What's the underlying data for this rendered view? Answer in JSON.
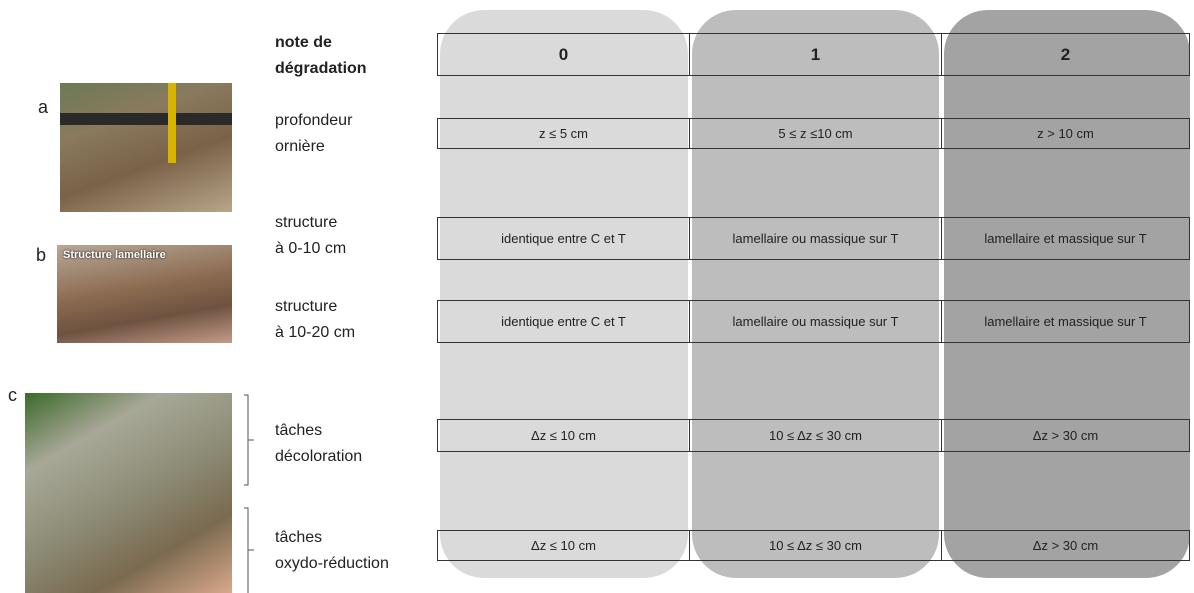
{
  "photos": [
    {
      "label": "a"
    },
    {
      "label": "b",
      "caption": "Structure lamellaire"
    },
    {
      "label": "c"
    }
  ],
  "table": {
    "header_label": [
      "note de",
      "dégradation"
    ],
    "columns": [
      "0",
      "1",
      "2"
    ],
    "rows": [
      {
        "label": [
          "profondeur",
          "ornière"
        ],
        "cells": [
          "z ≤ 5 cm",
          "5 ≤ z ≤10 cm",
          "z > 10 cm"
        ]
      },
      {
        "label": [
          "structure",
          "à 0-10 cm"
        ],
        "cells": [
          "identique entre C et T",
          "lamellaire ou massique sur T",
          "lamellaire et massique sur T"
        ]
      },
      {
        "label": [
          "structure",
          "à 10-20 cm"
        ],
        "cells": [
          "identique entre C et T",
          "lamellaire ou massique sur T",
          "lamellaire et massique sur T"
        ]
      },
      {
        "label": [
          "tâches",
          "décoloration"
        ],
        "cells": [
          "Δz ≤ 10 cm",
          "10 ≤ Δz ≤ 30 cm",
          "Δz > 30 cm"
        ]
      },
      {
        "label": [
          "tâches",
          "oxydo-réduction"
        ],
        "cells": [
          "Δz ≤ 10 cm",
          "10 ≤ Δz ≤ 30 cm",
          "Δz > 30 cm"
        ]
      }
    ]
  }
}
